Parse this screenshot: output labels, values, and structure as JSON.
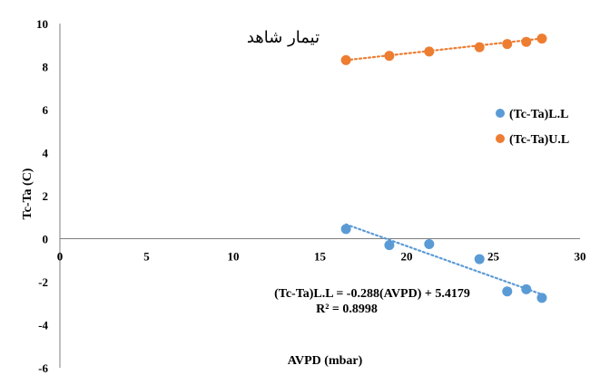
{
  "chart_data": {
    "type": "scatter",
    "title": "تیمار شاهد",
    "xlabel": "AVPD (mbar)",
    "ylabel": "Tc-Ta (C)",
    "xlim": [
      0,
      30
    ],
    "ylim": [
      -6,
      10
    ],
    "xticks": [
      "0",
      "5",
      "10",
      "15",
      "20",
      "25",
      "30"
    ],
    "yticks": [
      "-6",
      "-4",
      "-2",
      "0",
      "2",
      "4",
      "6",
      "8",
      "10"
    ],
    "grid": false,
    "legend": "right",
    "series": [
      {
        "name": "(Tc-Ta)L.L",
        "color": "#5B9BD5",
        "x": [
          16.5,
          19.0,
          21.3,
          24.2,
          25.8,
          26.9,
          27.8
        ],
        "y": [
          0.45,
          -0.3,
          -0.25,
          -0.95,
          -2.45,
          -2.35,
          -2.75
        ],
        "trendline": {
          "slope": -0.288,
          "intercept": 5.4179,
          "x_range": [
            16.5,
            27.8
          ]
        }
      },
      {
        "name": "(Tc-Ta)U.L",
        "color": "#ED7D31",
        "x": [
          16.5,
          19.0,
          21.3,
          24.2,
          25.8,
          26.9,
          27.8
        ],
        "y": [
          8.3,
          8.5,
          8.7,
          8.9,
          9.05,
          9.15,
          9.3
        ],
        "trendline": {
          "slope": 0.089,
          "intercept": 6.83,
          "x_range": [
            16.5,
            27.8
          ]
        }
      }
    ],
    "annotations": [
      "(Tc-Ta)L.L = -0.288(AVPD) + 5.4179",
      "R² = 0.8998"
    ]
  }
}
